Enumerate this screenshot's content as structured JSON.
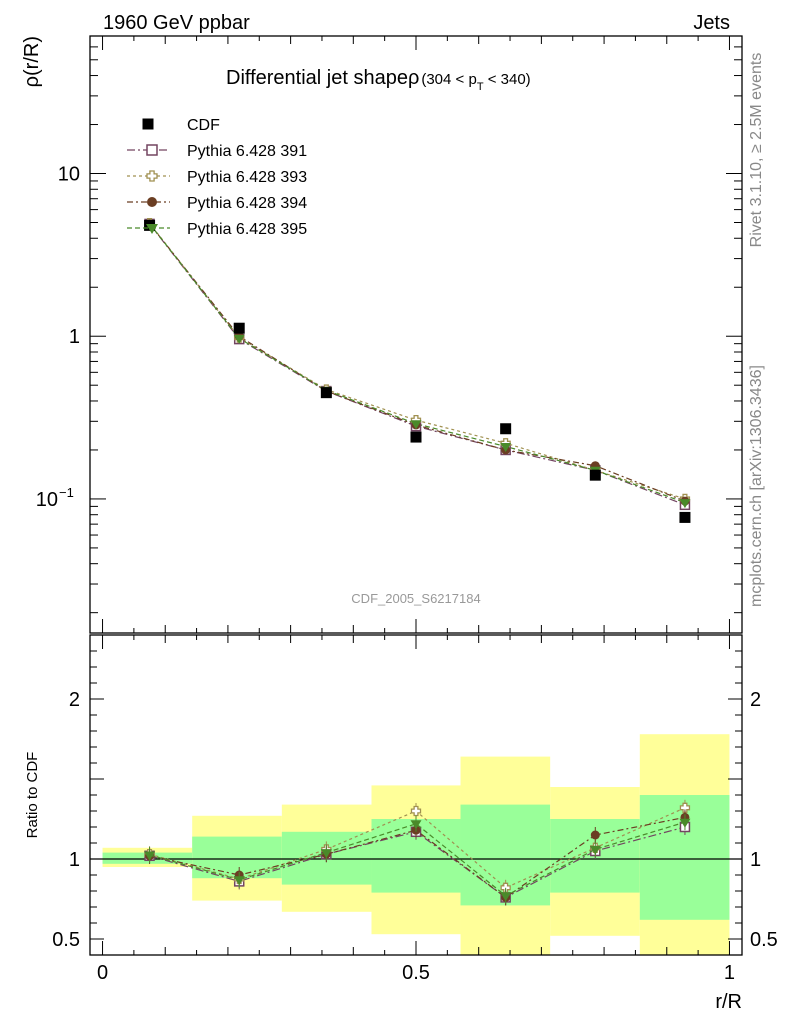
{
  "header": {
    "left": "1960 GeV ppbar",
    "right": "Jets"
  },
  "side_text": {
    "rivet": "Rivet 3.1.10, ≥ 2.5M events",
    "mcplots": "mcplots.cern.ch [arXiv:1306.3436]"
  },
  "chart_data": {
    "type": "line",
    "title": {
      "main": "Differential jet shapeρ",
      "paren_open": "(304 < p",
      "subscript": "T",
      "paren_close": " < 340)"
    },
    "analysis_label": "CDF_2005_S6217184",
    "ylabel": "ρ(r/R)",
    "ratio_ylabel": "Ratio to CDF",
    "xlabel": "r/R",
    "x": [
      0.075,
      0.218,
      0.357,
      0.5,
      0.643,
      0.786,
      0.929
    ],
    "xlim": [
      -0.02,
      1.02
    ],
    "ylim": [
      0.015,
      70
    ],
    "yscale": "log",
    "ratio_ylim": [
      0.4,
      2.4
    ],
    "x_ticks": [
      "0",
      "0.5",
      "1"
    ],
    "y_ticks": [
      {
        "value": 10,
        "label": "10"
      },
      {
        "value": 1,
        "label": "1"
      },
      {
        "value": 0.1,
        "label": "10",
        "sup": "−1"
      }
    ],
    "ratio_ticks": [
      {
        "value": 0.5,
        "label": "0.5"
      },
      {
        "value": 1,
        "label": "1"
      },
      {
        "value": 2,
        "label": "2"
      }
    ],
    "data": {
      "name": "CDF",
      "color": "#000000",
      "values": [
        4.8,
        1.12,
        0.45,
        0.24,
        0.27,
        0.14,
        0.077
      ]
    },
    "series": [
      {
        "name": "Pythia 6.428 391",
        "color": "#734561",
        "marker": "open-square",
        "dash": "8,3,2,3",
        "values": [
          4.9,
          0.96,
          0.46,
          0.28,
          0.2,
          0.15,
          0.092
        ]
      },
      {
        "name": "Pythia 6.428 393",
        "color": "#a09050",
        "marker": "open-cross",
        "dash": "3,3",
        "values": [
          4.95,
          0.98,
          0.47,
          0.305,
          0.22,
          0.15,
          0.1
        ]
      },
      {
        "name": "Pythia 6.428 394",
        "color": "#6b3e23",
        "marker": "filled-circle",
        "dash": "6,3,2,3",
        "values": [
          4.9,
          1.0,
          0.46,
          0.285,
          0.2,
          0.16,
          0.097
        ]
      },
      {
        "name": "Pythia 6.428 395",
        "color": "#4a8a2a",
        "marker": "filled-triangle-down",
        "dash": "5,3",
        "values": [
          4.92,
          0.97,
          0.465,
          0.29,
          0.21,
          0.15,
          0.095
        ]
      }
    ],
    "ratio": [
      {
        "series": "Pythia 6.428 391",
        "values": [
          1.02,
          0.86,
          1.03,
          1.17,
          0.76,
          1.05,
          1.2
        ]
      },
      {
        "series": "Pythia 6.428 393",
        "values": [
          1.03,
          0.875,
          1.06,
          1.3,
          0.82,
          1.07,
          1.32
        ]
      },
      {
        "series": "Pythia 6.428 394",
        "values": [
          1.02,
          0.9,
          1.03,
          1.18,
          0.76,
          1.15,
          1.26
        ]
      },
      {
        "series": "Pythia 6.428 395",
        "values": [
          1.025,
          0.87,
          1.04,
          1.22,
          0.77,
          1.06,
          1.23
        ]
      }
    ],
    "uncertainty_bins": [
      {
        "x": [
          0.0,
          0.143
        ],
        "inner": [
          0.97,
          1.04
        ],
        "outer": [
          0.95,
          1.07
        ]
      },
      {
        "x": [
          0.143,
          0.286
        ],
        "inner": [
          0.88,
          1.14
        ],
        "outer": [
          0.74,
          1.27
        ]
      },
      {
        "x": [
          0.286,
          0.429
        ],
        "inner": [
          0.84,
          1.17
        ],
        "outer": [
          0.67,
          1.34
        ]
      },
      {
        "x": [
          0.429,
          0.571
        ],
        "inner": [
          0.79,
          1.25
        ],
        "outer": [
          0.53,
          1.46
        ]
      },
      {
        "x": [
          0.571,
          0.714
        ],
        "inner": [
          0.71,
          1.34
        ],
        "outer": [
          0.4,
          1.64
        ]
      },
      {
        "x": [
          0.714,
          0.857
        ],
        "inner": [
          0.79,
          1.25
        ],
        "outer": [
          0.52,
          1.45
        ]
      },
      {
        "x": [
          0.857,
          1.0
        ],
        "inner": [
          0.62,
          1.4
        ],
        "outer": [
          0.4,
          1.78
        ]
      }
    ],
    "colors": {
      "inner_band": "#99ff99",
      "outer_band": "#ffff99"
    },
    "legend_position": "top-left",
    "grid": false
  }
}
